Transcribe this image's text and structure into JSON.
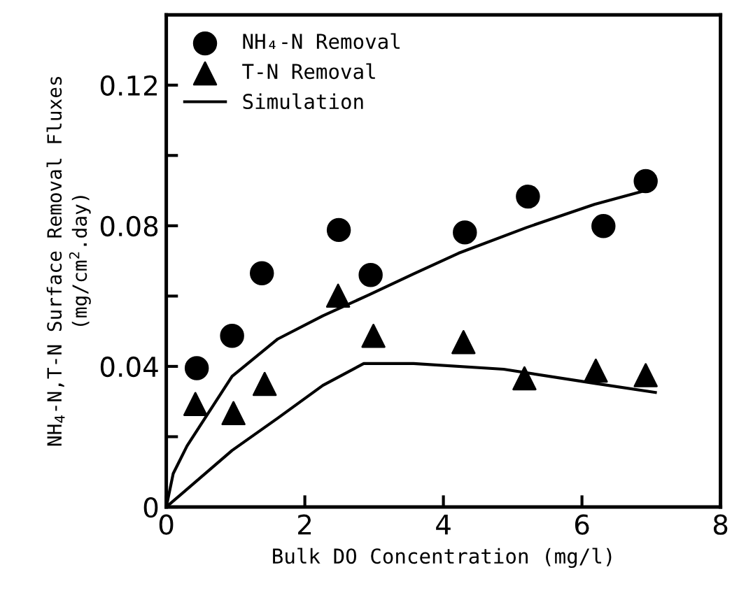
{
  "chart_data": {
    "type": "scatter",
    "xlabel": "Bulk DO Concentration (mg/l)",
    "ylabel": "NH$_{4}$-N,T-N Surface Removal Fluxes\n(mg/cm$^{2}$.day)",
    "xlim": [
      0,
      8
    ],
    "ylim": [
      0,
      0.14
    ],
    "xticks": [
      0,
      2,
      4,
      6,
      8
    ],
    "yticks": [
      0,
      {
        "value": 0.02,
        "label": null
      },
      {
        "value": 0.04,
        "label": "0.04"
      },
      {
        "value": 0.06,
        "label": null
      },
      {
        "value": 0.08,
        "label": "0.08"
      },
      {
        "value": 0.1,
        "label": null
      },
      {
        "value": 0.12,
        "label": "0.12"
      }
    ],
    "legend": "top left",
    "grid": false,
    "series": [
      {
        "name": "NH₄-N Removal",
        "marker": "circle",
        "color": "#000000",
        "x": [
          0.44,
          0.95,
          1.38,
          2.49,
          2.95,
          4.31,
          5.22,
          6.31,
          6.92
        ],
        "values": [
          0.0395,
          0.0487,
          0.0665,
          0.0788,
          0.066,
          0.0781,
          0.0883,
          0.0799,
          0.0927
        ]
      },
      {
        "name": "T-N Removal",
        "marker": "triangle",
        "color": "#000000",
        "x": [
          0.42,
          0.97,
          1.42,
          2.48,
          2.99,
          4.29,
          5.17,
          6.2,
          6.92
        ],
        "values": [
          0.0293,
          0.0267,
          0.035,
          0.0601,
          0.0487,
          0.0469,
          0.0366,
          0.0388,
          0.0375
        ]
      },
      {
        "name": "Simulation",
        "type": "line",
        "line_style": "solid",
        "color": "#000000",
        "x": [
          0,
          0.1,
          0.3,
          0.95,
          1.61,
          2.26,
          2.92,
          3.57,
          4.22,
          5.2,
          6.18,
          6.84,
          6.9
        ],
        "values": [
          0,
          0.0095,
          0.0174,
          0.0372,
          0.0478,
          0.0544,
          0.0603,
          0.0663,
          0.0722,
          0.0795,
          0.0861,
          0.0896,
          0.09
        ]
      },
      {
        "type": "line",
        "line_style": "solid",
        "color": "#000000",
        "x": [
          0,
          0.95,
          1.61,
          2.26,
          2.85,
          3.57,
          4.87,
          6.18,
          7.06
        ],
        "values": [
          0,
          0.0161,
          0.0253,
          0.0346,
          0.0408,
          0.0408,
          0.0392,
          0.0352,
          0.0326
        ]
      }
    ]
  }
}
